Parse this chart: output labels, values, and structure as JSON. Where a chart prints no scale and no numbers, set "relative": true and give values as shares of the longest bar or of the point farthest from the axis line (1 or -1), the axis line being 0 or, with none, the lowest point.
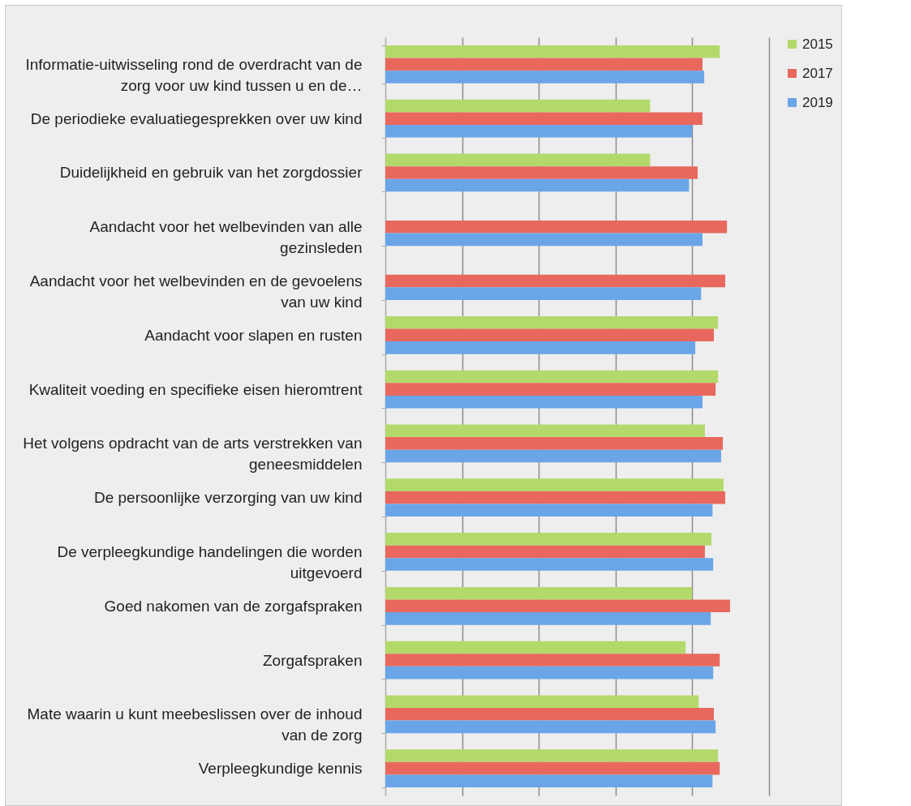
{
  "chart_data": {
    "type": "bar",
    "orientation": "horizontal",
    "relative": true,
    "grid": "x",
    "legend": "right",
    "categories": [
      "Informatie-uitwisseling rond de overdracht van de zorg voor uw kind tussen u en de…",
      "De periodieke evaluatiegesprekken over uw kind",
      "Duidelijkheid en gebruik van het zorgdossier",
      "Aandacht voor het welbevinden van alle gezinsleden",
      "Aandacht voor het welbevinden en de gevoelens van uw kind",
      "Aandacht voor slapen en rusten",
      "Kwaliteit voeding en specifieke eisen hieromtrent",
      "Het volgens opdracht van de arts verstrekken van geneesmiddelen",
      "De persoonlijke verzorging van uw kind",
      "De verpleegkundige handelingen die worden uitgevoerd",
      "Goed nakomen van de zorgafspraken",
      "Zorgafspraken",
      "Mate waarin u kunt meebeslissen over de inhoud van de zorg",
      "Verpleegkundige kennis"
    ],
    "series": [
      {
        "name": "2015",
        "color": "#b3d96b",
        "values": [
          0.97,
          0.768,
          0.768,
          0,
          0,
          0.965,
          0.965,
          0.927,
          0.981,
          0.946,
          0.89,
          0.871,
          0.909,
          0.965
        ]
      },
      {
        "name": "2017",
        "color": "#e8685d",
        "values": [
          0.92,
          0.92,
          0.906,
          0.991,
          0.986,
          0.953,
          0.958,
          0.979,
          0.986,
          0.927,
          1.0,
          0.97,
          0.953,
          0.97
        ]
      },
      {
        "name": "2019",
        "color": "#6aa5e8",
        "values": [
          0.925,
          0.89,
          0.881,
          0.92,
          0.916,
          0.899,
          0.92,
          0.974,
          0.949,
          0.951,
          0.944,
          0.951,
          0.958,
          0.949
        ]
      }
    ]
  }
}
